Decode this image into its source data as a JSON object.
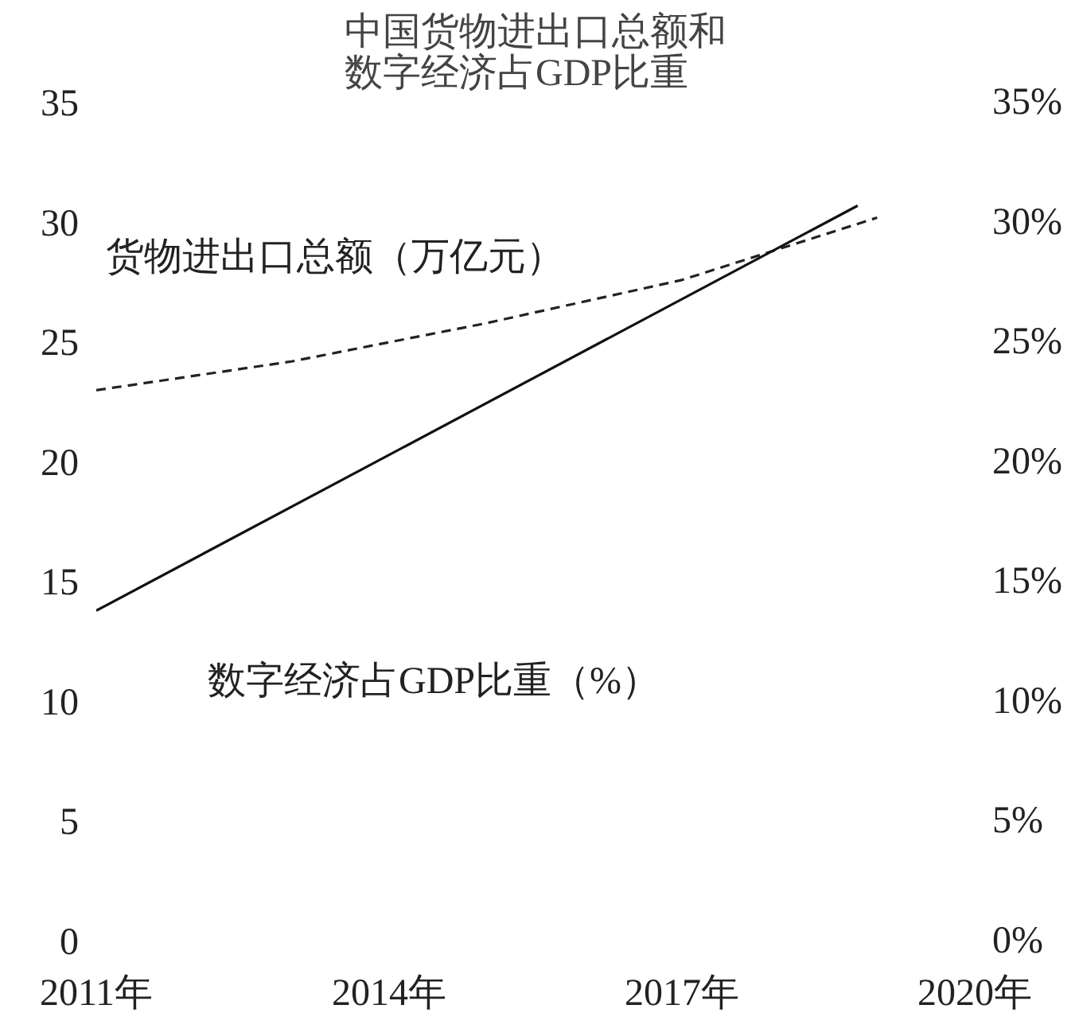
{
  "chart_data": {
    "type": "line",
    "title": "中国货物进出口总额和数字经济占GDP比重",
    "xlim": [
      2011,
      2020
    ],
    "xticks": [
      {
        "value": 2011,
        "label": "2011年"
      },
      {
        "value": 2014,
        "label": "2014年"
      },
      {
        "value": 2017,
        "label": "2017年"
      },
      {
        "value": 2020,
        "label": "2020年"
      }
    ],
    "ylim": [
      0,
      35
    ],
    "yticks": [
      0,
      5,
      10,
      15,
      20,
      25,
      30,
      35
    ],
    "y2lim": [
      0,
      35
    ],
    "y2ticks": [
      {
        "value": 0,
        "label": "0%"
      },
      {
        "value": 5,
        "label": "5%"
      },
      {
        "value": 10,
        "label": "10%"
      },
      {
        "value": 15,
        "label": "15%"
      },
      {
        "value": 20,
        "label": "20%"
      },
      {
        "value": 25,
        "label": "25%"
      },
      {
        "value": 30,
        "label": "30%"
      },
      {
        "value": 35,
        "label": "35%"
      }
    ],
    "grid": false,
    "marker": "none",
    "series": [
      {
        "name": "货物进出口总额（万亿元）",
        "color": "#222222",
        "line_style": "dashed",
        "x": [
          2011,
          2013,
          2015,
          2017,
          2019
        ],
        "values": [
          23.0,
          24.2,
          25.8,
          27.6,
          30.2
        ]
      },
      {
        "name": "数字经济占GDP比重（%）",
        "color": "#111111",
        "line_style": "solid",
        "x": [
          2011,
          2018.8
        ],
        "values": [
          13.8,
          30.7
        ]
      }
    ]
  }
}
